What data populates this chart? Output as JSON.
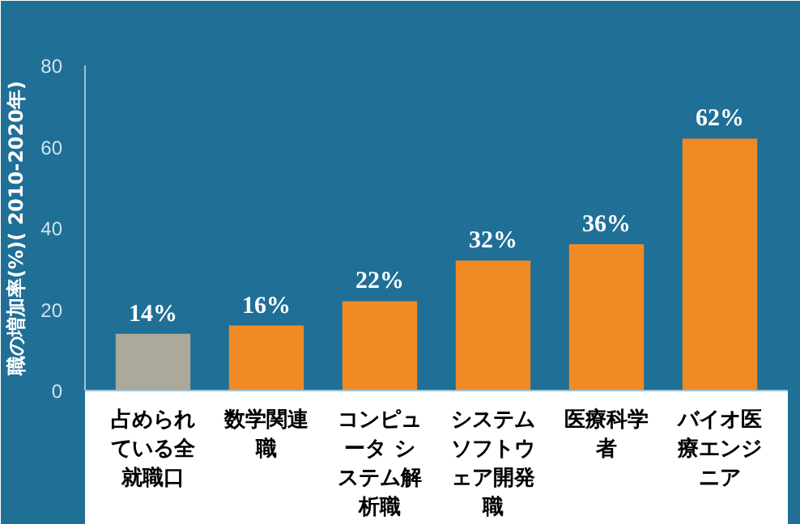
{
  "chart_data": {
    "type": "bar",
    "ylabel": "職の増加率(%)( 2010-2020年)",
    "categories": [
      "占められている全就職口",
      "数学関連職",
      "コンピュータ システム解析職",
      "システムソフトウェア開発職",
      "医療科学者",
      "バイオ医療エンジニア"
    ],
    "values": [
      14,
      16,
      22,
      32,
      36,
      62
    ],
    "colors": [
      "#aca89a",
      "#f08a24",
      "#f08a24",
      "#f08a24",
      "#f08a24",
      "#f08a24"
    ],
    "value_labels": [
      "14%",
      "16%",
      "22%",
      "32%",
      "36%",
      "62%"
    ],
    "ylim": [
      0,
      80
    ],
    "yticks": [
      0,
      20,
      40,
      60,
      80
    ],
    "grid": false
  }
}
